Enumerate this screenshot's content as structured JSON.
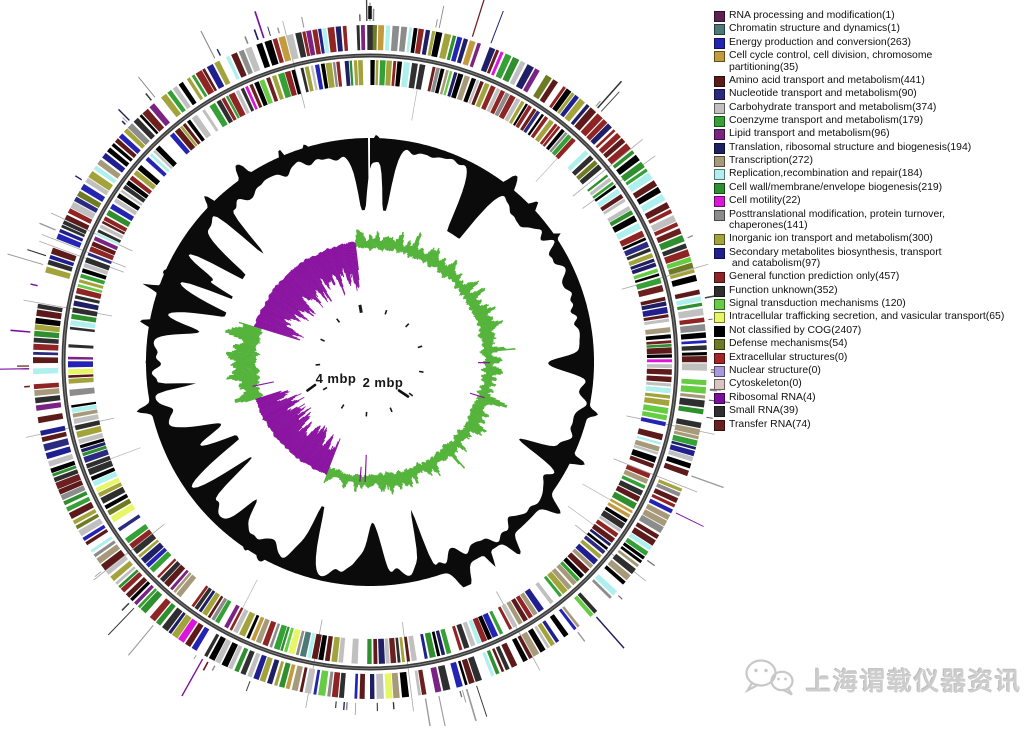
{
  "chart_data": {
    "type": "circular_genome_map",
    "scale_labels": [
      {
        "text": "4 mbp"
      },
      {
        "text": "2 mbp"
      }
    ],
    "rings": [
      {
        "order": 1,
        "name": "outer gene marker ticks (RNA genes)"
      },
      {
        "order": 2,
        "name": "CDS colored by COG category, forward strand"
      },
      {
        "order": 3,
        "name": "CDS colored by COG category, reverse strand"
      },
      {
        "order": 4,
        "name": "GC content",
        "color": "#0b0b0b"
      },
      {
        "order": 5,
        "name": "GC skew",
        "positive_color": "#54b33a",
        "negative_color": "#8a13a0"
      },
      {
        "order": 6,
        "name": "genome position scale (mbp)"
      }
    ],
    "legend": {
      "items": [
        {
          "name": "RNA processing and modification",
          "count": 1,
          "color": "#5c2350",
          "lines": [
            "RNA processing and modification(1)"
          ]
        },
        {
          "name": "Chromatin structure and dynamics",
          "count": 1,
          "color": "#4d7a77",
          "lines": [
            "Chromatin structure and dynamics(1)"
          ]
        },
        {
          "name": "Energy production and conversion",
          "count": 263,
          "color": "#2424b4",
          "lines": [
            "Energy production and conversion(263)"
          ]
        },
        {
          "name": "Cell cycle control, cell division, chromosome partitioning",
          "count": 35,
          "color": "#c39a3d",
          "lines": [
            "Cell cycle control, cell division, chromosome",
            "partitioning(35)"
          ]
        },
        {
          "name": "Amino acid transport and metabolism",
          "count": 441,
          "color": "#5c1a1a",
          "lines": [
            "Amino acid transport and metabolism(441)"
          ]
        },
        {
          "name": "Nucleotide transport and metabolism",
          "count": 90,
          "color": "#2a2a80",
          "lines": [
            "Nucleotide transport and metabolism(90)"
          ]
        },
        {
          "name": "Carbohydrate transport and metabolism",
          "count": 374,
          "color": "#c0c0c0",
          "lines": [
            "Carbohydrate transport and metabolism(374)"
          ]
        },
        {
          "name": "Coenzyme transport and metabolism",
          "count": 179,
          "color": "#35a035",
          "lines": [
            "Coenzyme transport and metabolism(179)"
          ]
        },
        {
          "name": "Lipid transport and metabolism",
          "count": 96,
          "color": "#7b2382",
          "lines": [
            "Lipid transport and metabolism(96)"
          ]
        },
        {
          "name": "Translation, ribosomal structure and biogenesis",
          "count": 194,
          "color": "#1f1f66",
          "lines": [
            "Translation, ribosomal structure and biogenesis(194)"
          ]
        },
        {
          "name": "Transcription",
          "count": 272,
          "color": "#a69a7a",
          "lines": [
            "Transcription(272)"
          ]
        },
        {
          "name": "Replication,recombination and repair",
          "count": 184,
          "color": "#aef0ee",
          "lines": [
            "Replication,recombination and repair(184)"
          ]
        },
        {
          "name": "Cell wall/membrane/envelope biogenesis",
          "count": 219,
          "color": "#2f8f2f",
          "lines": [
            "Cell wall/membrane/envelope biogenesis(219)"
          ]
        },
        {
          "name": "Cell motility",
          "count": 22,
          "color": "#d916d9",
          "lines": [
            "Cell motility(22)"
          ]
        },
        {
          "name": "Posttranslational modification, protein turnover, chaperones",
          "count": 141,
          "color": "#8c8c8c",
          "lines": [
            "Posttranslational modification, protein turnover,",
            "chaperones(141)"
          ]
        },
        {
          "name": "Inorganic ion transport and metabolism",
          "count": 300,
          "color": "#a3a33c",
          "lines": [
            "Inorganic ion transport and metabolism(300)"
          ]
        },
        {
          "name": "Secondary metabolites biosynthesis, transport and catabolism",
          "count": 97,
          "color": "#1f1f8f",
          "lines": [
            "Secondary metabolites biosynthesis, transport",
            " and catabolism(97)"
          ]
        },
        {
          "name": "General function prediction only",
          "count": 457,
          "color": "#8f2424",
          "lines": [
            "General function prediction only(457)"
          ]
        },
        {
          "name": "Function unknown",
          "count": 352,
          "color": "#2e2e2e",
          "lines": [
            "Function unknown(352)"
          ]
        },
        {
          "name": "Signal transduction mechanisms",
          "count": 120,
          "color": "#66cc44",
          "lines": [
            "Signal transduction mechanisms (120)"
          ]
        },
        {
          "name": "Intracellular trafficking secretion, and vasicular transport",
          "count": 65,
          "color": "#e6f763",
          "lines": [
            "Intracellular trafficking secretion, and vasicular transport(65)"
          ]
        },
        {
          "name": "Not classified by COG",
          "count": 2407,
          "color": "#000000",
          "lines": [
            "Not classified by COG(2407)"
          ]
        },
        {
          "name": "Defense mechanisms",
          "count": 54,
          "color": "#6f7a24",
          "lines": [
            "Defense mechanisms(54)"
          ]
        },
        {
          "name": "Extracellular structures",
          "count": 0,
          "color": "#a32424",
          "lines": [
            "Extracellular structures(0)"
          ]
        },
        {
          "name": "Nuclear structure",
          "count": 0,
          "color": "#a898dd",
          "lines": [
            "Nuclear structure(0)"
          ]
        },
        {
          "name": "Cytoskeleton",
          "count": 0,
          "color": "#d8c4c0",
          "lines": [
            "Cytoskeleton(0)"
          ]
        },
        {
          "name": "Ribosomal RNA",
          "count": 4,
          "color": "#7a0f9e",
          "lines": [
            "Ribosomal RNA(4)"
          ]
        },
        {
          "name": "Small RNA",
          "count": 39,
          "color": "#303030",
          "lines": [
            "Small RNA(39)"
          ]
        },
        {
          "name": "Transfer RNA",
          "count": 74,
          "color": "#6b1f1f",
          "lines": [
            "Transfer RNA(74)"
          ]
        }
      ]
    }
  },
  "watermark": {
    "text": "上海谓载仪器资讯"
  }
}
